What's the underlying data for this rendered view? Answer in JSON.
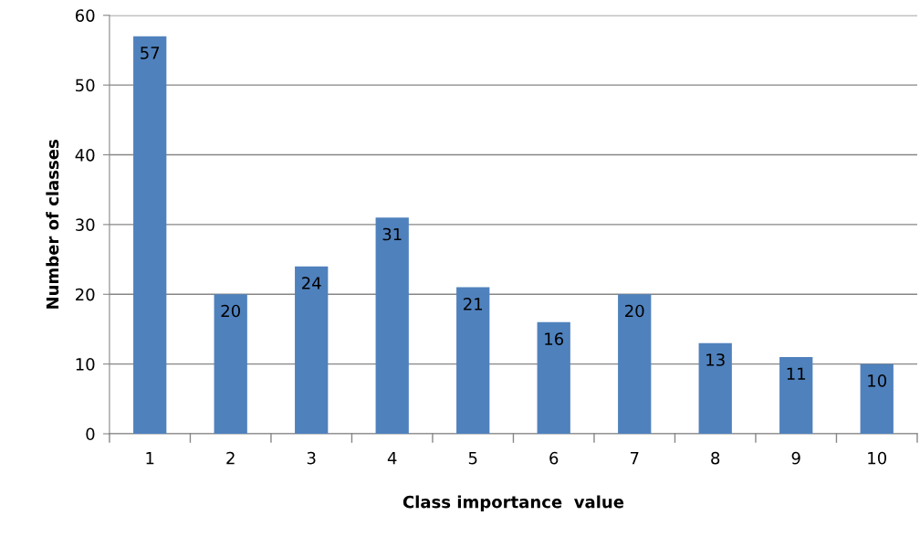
{
  "chart_data": {
    "type": "bar",
    "xlabel": "Class importance  value",
    "ylabel": "Number of classes",
    "categories": [
      "1",
      "2",
      "3",
      "4",
      "5",
      "6",
      "7",
      "8",
      "9",
      "10"
    ],
    "values": [
      57,
      20,
      24,
      31,
      21,
      16,
      20,
      13,
      11,
      10
    ],
    "color": "#4f81bd",
    "ylim": [
      0,
      60
    ],
    "yticks": [
      0,
      10,
      20,
      30,
      40,
      50,
      60
    ],
    "grid": "y",
    "data_labels": true,
    "legend": false
  }
}
